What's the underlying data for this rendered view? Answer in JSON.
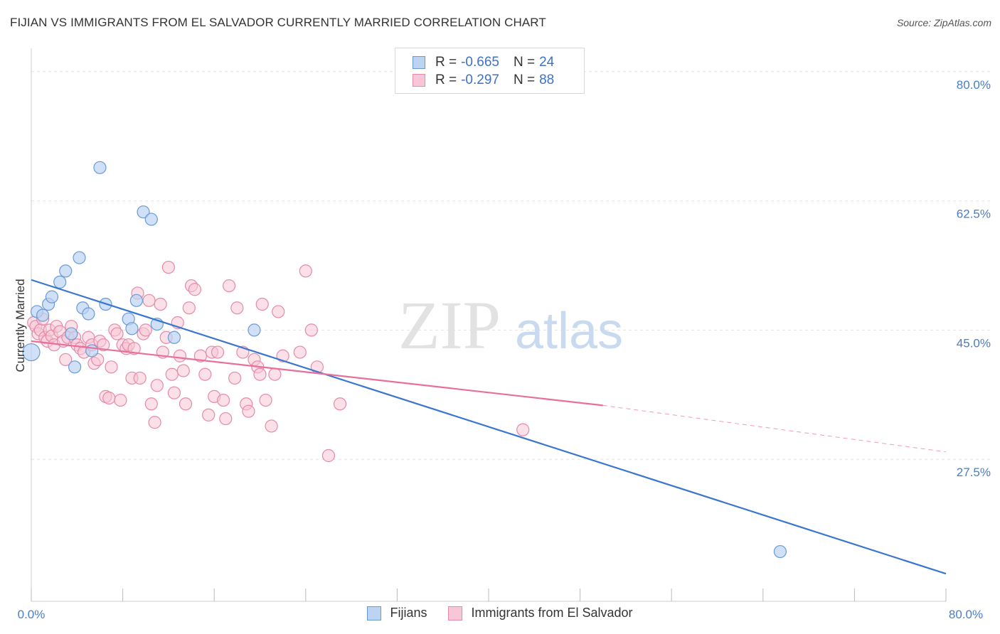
{
  "header": {
    "title": "FIJIAN VS IMMIGRANTS FROM EL SALVADOR CURRENTLY MARRIED CORRELATION CHART",
    "source": "Source: ZipAtlas.com"
  },
  "legend": {
    "rows": [
      {
        "r_label": "R = ",
        "r_value": "-0.665",
        "n_label": "N = ",
        "n_value": "24",
        "fill": "#bcd3f2",
        "stroke": "#6a9ad6"
      },
      {
        "r_label": "R = ",
        "r_value": "-0.297",
        "n_label": "N = ",
        "n_value": "88",
        "fill": "#f8c6d6",
        "stroke": "#e58aa8"
      }
    ]
  },
  "bottom_legend": {
    "items": [
      {
        "label": "Fijians",
        "fill": "#bcd3f2",
        "stroke": "#6a9ad6"
      },
      {
        "label": "Immigrants from El Salvador",
        "fill": "#f8c6d6",
        "stroke": "#e58aa8"
      }
    ]
  },
  "watermark": {
    "zip": "ZIP",
    "atlas": "atlas"
  },
  "chart_data": {
    "type": "scatter",
    "title": "FIJIAN VS IMMIGRANTS FROM EL SALVADOR CURRENTLY MARRIED CORRELATION CHART",
    "xlabel": "",
    "ylabel": "Currently Married",
    "xlim": [
      0,
      80
    ],
    "ylim": [
      10,
      82
    ],
    "x_tick_labels": [
      "0.0%",
      "80.0%"
    ],
    "y_ticks": [
      27.5,
      45.0,
      62.5,
      80.0
    ],
    "y_tick_labels": [
      "27.5%",
      "45.0%",
      "62.5%",
      "80.0%"
    ],
    "grid": true,
    "colors": {
      "fijians": "#3a76d0",
      "salvador": "#e86f9a"
    },
    "series": [
      {
        "name": "Fijians",
        "points": [
          [
            0.0,
            42.0
          ],
          [
            0.5,
            47.5
          ],
          [
            1.0,
            47.0
          ],
          [
            1.5,
            48.5
          ],
          [
            1.8,
            49.5
          ],
          [
            2.5,
            51.5
          ],
          [
            3.0,
            53.0
          ],
          [
            3.5,
            44.5
          ],
          [
            3.8,
            40.0
          ],
          [
            4.2,
            54.8
          ],
          [
            4.5,
            48.0
          ],
          [
            5.0,
            47.2
          ],
          [
            5.3,
            42.2
          ],
          [
            6.0,
            67.0
          ],
          [
            6.5,
            48.5
          ],
          [
            8.5,
            46.5
          ],
          [
            8.8,
            45.2
          ],
          [
            9.2,
            49.0
          ],
          [
            9.8,
            61.0
          ],
          [
            10.5,
            60.0
          ],
          [
            11.0,
            45.8
          ],
          [
            12.5,
            44.0
          ],
          [
            19.5,
            45.0
          ],
          [
            65.5,
            15.0
          ]
        ],
        "trend": [
          [
            0,
            51.8
          ],
          [
            80,
            12.0
          ]
        ]
      },
      {
        "name": "Immigrants from El Salvador",
        "points": [
          [
            0.2,
            46.0
          ],
          [
            0.4,
            45.5
          ],
          [
            0.6,
            44.5
          ],
          [
            0.8,
            45.0
          ],
          [
            1.0,
            46.5
          ],
          [
            1.2,
            44.0
          ],
          [
            1.4,
            43.5
          ],
          [
            1.6,
            45.0
          ],
          [
            1.8,
            44.2
          ],
          [
            2.0,
            43.0
          ],
          [
            2.2,
            45.5
          ],
          [
            2.5,
            44.8
          ],
          [
            2.8,
            43.5
          ],
          [
            3.0,
            41.0
          ],
          [
            3.2,
            44.0
          ],
          [
            3.5,
            45.5
          ],
          [
            3.8,
            44.0
          ],
          [
            4.0,
            43.0
          ],
          [
            4.3,
            42.5
          ],
          [
            4.6,
            42.0
          ],
          [
            5.0,
            44.0
          ],
          [
            5.3,
            43.0
          ],
          [
            5.5,
            40.5
          ],
          [
            5.8,
            41.0
          ],
          [
            6.0,
            43.5
          ],
          [
            6.3,
            43.0
          ],
          [
            6.5,
            36.0
          ],
          [
            6.8,
            35.8
          ],
          [
            7.0,
            40.0
          ],
          [
            7.3,
            45.0
          ],
          [
            7.5,
            44.5
          ],
          [
            7.8,
            35.5
          ],
          [
            8.0,
            43.0
          ],
          [
            8.3,
            42.5
          ],
          [
            8.5,
            43.0
          ],
          [
            8.8,
            38.5
          ],
          [
            9.0,
            42.5
          ],
          [
            9.3,
            50.0
          ],
          [
            9.5,
            38.5
          ],
          [
            9.8,
            44.5
          ],
          [
            10.0,
            45.0
          ],
          [
            10.3,
            49.0
          ],
          [
            10.5,
            35.0
          ],
          [
            10.8,
            32.5
          ],
          [
            11.0,
            37.5
          ],
          [
            11.3,
            48.5
          ],
          [
            11.5,
            42.0
          ],
          [
            11.8,
            44.0
          ],
          [
            12.0,
            53.5
          ],
          [
            12.3,
            39.0
          ],
          [
            12.5,
            36.5
          ],
          [
            12.8,
            46.0
          ],
          [
            13.0,
            41.5
          ],
          [
            13.3,
            39.5
          ],
          [
            13.5,
            35.0
          ],
          [
            13.8,
            48.0
          ],
          [
            14.0,
            51.0
          ],
          [
            14.3,
            50.5
          ],
          [
            14.8,
            41.5
          ],
          [
            15.2,
            39.0
          ],
          [
            15.5,
            33.5
          ],
          [
            15.8,
            42.0
          ],
          [
            16.0,
            36.0
          ],
          [
            16.3,
            42.0
          ],
          [
            16.8,
            35.5
          ],
          [
            17.0,
            33.0
          ],
          [
            17.3,
            51.0
          ],
          [
            17.8,
            38.5
          ],
          [
            18.0,
            48.0
          ],
          [
            18.5,
            42.0
          ],
          [
            18.8,
            35.0
          ],
          [
            19.0,
            34.0
          ],
          [
            19.5,
            41.0
          ],
          [
            19.8,
            40.0
          ],
          [
            20.0,
            39.0
          ],
          [
            20.2,
            48.5
          ],
          [
            20.5,
            35.5
          ],
          [
            21.0,
            32.0
          ],
          [
            21.3,
            39.0
          ],
          [
            21.6,
            47.5
          ],
          [
            22.0,
            41.5
          ],
          [
            23.5,
            42.0
          ],
          [
            24.0,
            53.0
          ],
          [
            24.5,
            45.0
          ],
          [
            25.0,
            40.0
          ],
          [
            26.0,
            28.0
          ],
          [
            27.0,
            35.0
          ],
          [
            43.0,
            31.5
          ]
        ],
        "trend": [
          [
            0,
            43.5
          ],
          [
            50,
            34.8
          ]
        ],
        "trend_dashed": [
          [
            50,
            34.8
          ],
          [
            80,
            28.5
          ]
        ]
      }
    ]
  }
}
